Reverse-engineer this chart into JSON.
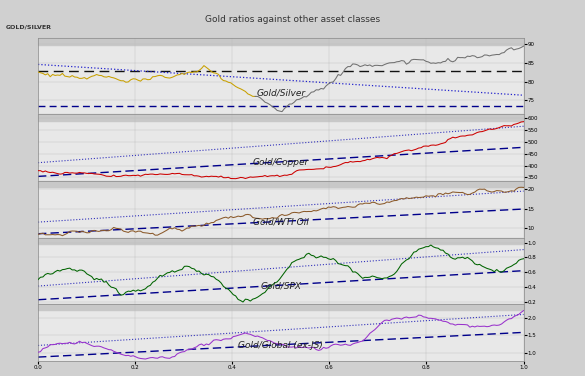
{
  "title": "Gold ratios against other asset classes",
  "panels": [
    {
      "label": "Gold/Silver",
      "color": "#c8a000",
      "color2": "#808080"
    },
    {
      "label": "Gold/Copper",
      "color": "#cc0000"
    },
    {
      "label": "Gold/WTI Oil",
      "color": "#8b5a2b"
    },
    {
      "label": "Gold/SPX",
      "color": "#006400"
    },
    {
      "label": "Gold/Global (ex-JS)",
      "color": "#9932cc"
    }
  ],
  "n_points": 200,
  "panel_bg": "#e8e8e8",
  "header_bg": "#c8c8c8",
  "fig_bg": "#d0d0d0"
}
